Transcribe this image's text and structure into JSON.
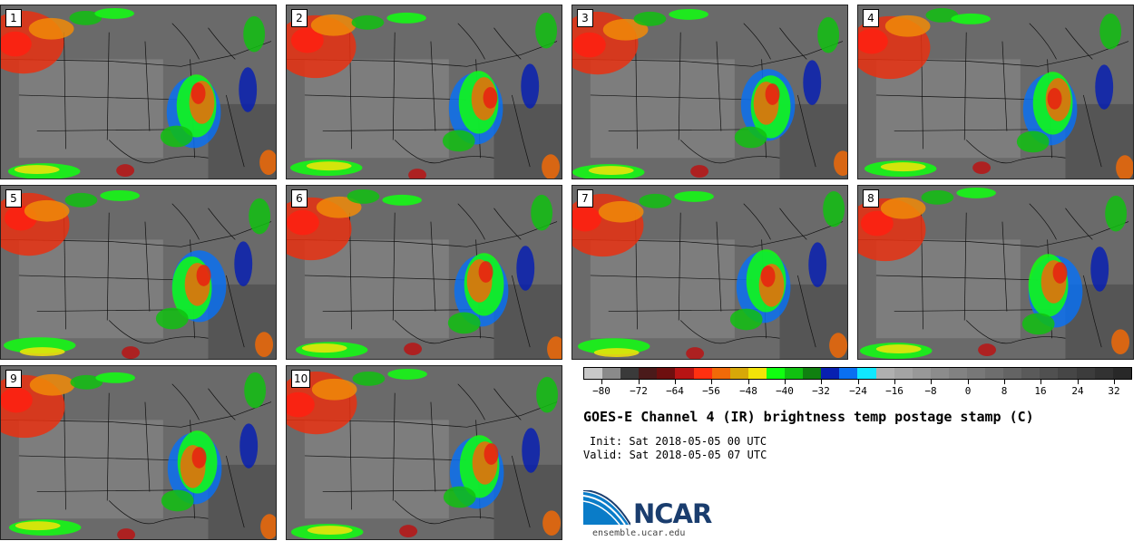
{
  "panels": [
    "1",
    "2",
    "3",
    "4",
    "5",
    "6",
    "7",
    "8",
    "9",
    "10"
  ],
  "colorbar": {
    "colors": [
      "#c8c8c8",
      "#8a8a8a",
      "#3a3a3a",
      "#4a1a1a",
      "#6e0f0f",
      "#b81414",
      "#ff3010",
      "#f06a08",
      "#d8a808",
      "#f2e408",
      "#10ff10",
      "#10c010",
      "#108010",
      "#0820b0",
      "#0a70f0",
      "#10e8ff",
      "#b0b0b0",
      "#a4a4a4",
      "#989898",
      "#8c8c8c",
      "#828282",
      "#787878",
      "#6e6e6e",
      "#646464",
      "#5a5a5a",
      "#505050",
      "#464646",
      "#3c3c3c",
      "#323232",
      "#282828"
    ],
    "ticks": [
      "−80",
      "−72",
      "−64",
      "−56",
      "−48",
      "−40",
      "−32",
      "−24",
      "−16",
      "−8",
      "0",
      "8",
      "16",
      "24",
      "32"
    ]
  },
  "title": "GOES-E Channel 4 (IR) brightness temp postage stamp (C)",
  "init": "Init: Sat 2018-05-05 00 UTC",
  "valid": "Valid: Sat 2018-05-05 07 UTC",
  "logo": {
    "name": "NCAR",
    "site": "ensemble.ucar.edu",
    "color": "#1a3d6e",
    "accent": "#0a7cc8"
  }
}
